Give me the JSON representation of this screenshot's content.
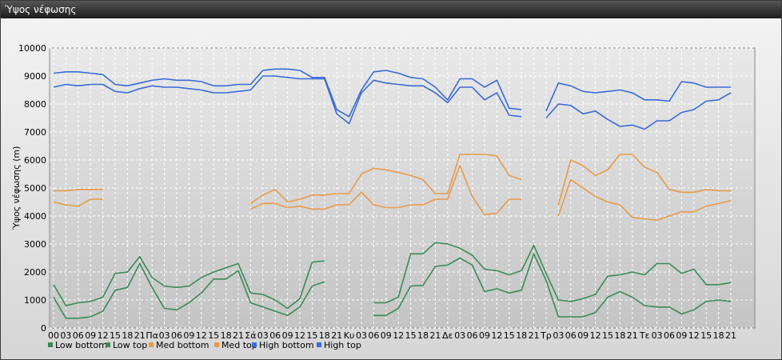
{
  "window": {
    "title": "Ύψος νέφωσης"
  },
  "chart_data": {
    "type": "line",
    "title": "",
    "xlabel": "",
    "ylabel": "Ύψος νέφωσης (m)",
    "ylim": [
      0,
      10000
    ],
    "yticks": [
      0,
      1000,
      2000,
      3000,
      4000,
      5000,
      6000,
      7000,
      8000,
      9000,
      10000
    ],
    "grid": true,
    "legend_position": "bottom-left",
    "x": [
      "00",
      "03",
      "06",
      "09",
      "12",
      "15",
      "18",
      "21",
      "Πα",
      "03",
      "06",
      "09",
      "12",
      "15",
      "18",
      "21",
      "Σά",
      "03",
      "06",
      "09",
      "12",
      "15",
      "18",
      "21",
      "Κυ",
      "03",
      "06",
      "09",
      "12",
      "15",
      "18",
      "21",
      "Δε",
      "03",
      "06",
      "09",
      "12",
      "15",
      "18",
      "21",
      "Τρ",
      "03",
      "06",
      "09",
      "12",
      "15",
      "18",
      "21",
      "Τε",
      "03",
      "06",
      "09",
      "12",
      "15",
      "18",
      "21"
    ],
    "series": [
      {
        "name": "Low bottom",
        "color": "#3a8a5a",
        "values": [
          1100,
          350,
          350,
          400,
          600,
          1350,
          1450,
          2300,
          1450,
          700,
          650,
          900,
          1250,
          1750,
          1750,
          2050,
          900,
          750,
          600,
          450,
          750,
          1500,
          1650,
          null,
          null,
          null,
          450,
          450,
          700,
          1500,
          1520,
          2200,
          2250,
          2500,
          2250,
          1300,
          1400,
          1250,
          1350,
          2650,
          1700,
          400,
          400,
          400,
          550,
          1100,
          1300,
          1100,
          800,
          750,
          750,
          500,
          650,
          950,
          1000,
          950
        ]
      },
      {
        "name": "Low top",
        "color": "#3a8a5a",
        "values": [
          1550,
          800,
          900,
          950,
          1100,
          1950,
          2000,
          2550,
          1800,
          1500,
          1450,
          1500,
          1800,
          2000,
          2150,
          2300,
          1250,
          1200,
          1000,
          700,
          1050,
          2350,
          2400,
          null,
          null,
          null,
          900,
          900,
          1100,
          2650,
          2650,
          3050,
          3000,
          2850,
          2600,
          2100,
          2050,
          1900,
          2050,
          2950,
          1950,
          1000,
          950,
          1050,
          1200,
          1850,
          1900,
          2000,
          1900,
          2300,
          2300,
          1950,
          2100,
          1550,
          1550,
          1620
        ]
      },
      {
        "name": "Med bottom",
        "color": "#e89a4a",
        "values": [
          4500,
          4400,
          4350,
          4600,
          4600,
          null,
          null,
          null,
          null,
          null,
          null,
          null,
          null,
          null,
          null,
          null,
          4250,
          4450,
          4450,
          4300,
          4350,
          4250,
          4250,
          4400,
          4400,
          4850,
          4400,
          4300,
          4300,
          4400,
          4400,
          4600,
          4600,
          5800,
          4700,
          4050,
          4100,
          4600,
          4600,
          null,
          null,
          4000,
          5300,
          5000,
          4700,
          4500,
          4400,
          3950,
          3900,
          3850,
          4000,
          4150,
          4150,
          4350,
          4450,
          4550
        ]
      },
      {
        "name": "Med top",
        "color": "#e89a4a",
        "values": [
          4900,
          4900,
          4950,
          4950,
          4950,
          null,
          null,
          null,
          null,
          null,
          null,
          null,
          null,
          null,
          null,
          null,
          4450,
          4750,
          4950,
          4500,
          4600,
          4750,
          4750,
          4800,
          4800,
          5500,
          5700,
          5650,
          5550,
          5450,
          5300,
          4800,
          4800,
          6200,
          6200,
          6200,
          6150,
          5450,
          5300,
          null,
          null,
          4400,
          6000,
          5800,
          5450,
          5650,
          6200,
          6200,
          5750,
          5550,
          4950,
          4850,
          4850,
          4950,
          4900,
          4900
        ]
      },
      {
        "name": "High bottom",
        "color": "#3a6ad8",
        "values": [
          8600,
          8700,
          8650,
          8700,
          8700,
          8450,
          8400,
          8550,
          8650,
          8600,
          8600,
          8550,
          8500,
          8400,
          8400,
          8450,
          8500,
          9000,
          9000,
          8950,
          8900,
          8900,
          8900,
          7650,
          7300,
          8400,
          8850,
          8750,
          8700,
          8650,
          8650,
          8400,
          8050,
          8600,
          8600,
          8150,
          8400,
          7600,
          7550,
          null,
          7500,
          8000,
          7950,
          7650,
          7750,
          7450,
          7200,
          7250,
          7100,
          7400,
          7400,
          7700,
          7800,
          8100,
          8150,
          8400
        ]
      },
      {
        "name": "High top",
        "color": "#3a6ad8",
        "values": [
          9100,
          9150,
          9150,
          9100,
          9050,
          8700,
          8650,
          8750,
          8850,
          8900,
          8850,
          8850,
          8800,
          8650,
          8650,
          8700,
          8700,
          9200,
          9250,
          9250,
          9200,
          8950,
          8950,
          7800,
          7550,
          8500,
          9150,
          9200,
          9100,
          8950,
          8900,
          8600,
          8150,
          8900,
          8900,
          8600,
          8850,
          7850,
          7800,
          null,
          7750,
          8750,
          8650,
          8450,
          8400,
          8450,
          8500,
          8400,
          8150,
          8150,
          8100,
          8800,
          8750,
          8600,
          8600,
          8600
        ]
      }
    ]
  }
}
